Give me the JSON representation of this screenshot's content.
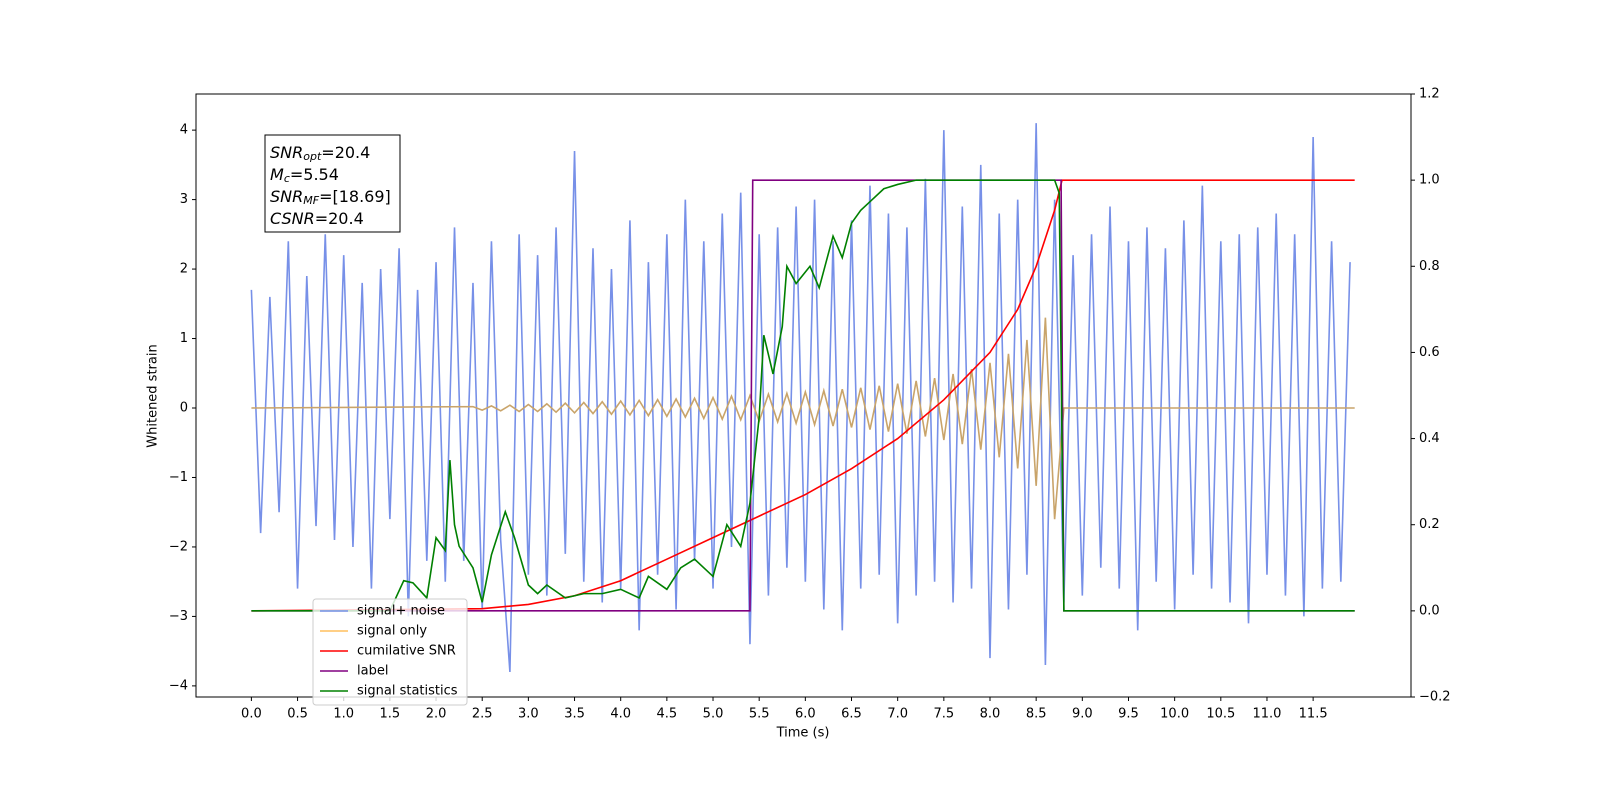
{
  "chart_data": {
    "type": "line",
    "xlabel": "Time (s)",
    "ylabel": "Whitened strain",
    "xlim": [
      -0.6,
      12.56
    ],
    "ylim": [
      -4.16,
      4.52
    ],
    "y2lim": [
      -0.2,
      1.2
    ],
    "xticks": [
      {
        "value": 0,
        "label": "0.0"
      },
      0.5,
      {
        "value": 1,
        "label": "1.0"
      },
      1.5,
      {
        "value": 2,
        "label": "2.0"
      },
      2.5,
      {
        "value": 3,
        "label": "3.0"
      },
      3.5,
      {
        "value": 4,
        "label": "4.0"
      },
      4.5,
      {
        "value": 5,
        "label": "5.0"
      },
      5.5,
      {
        "value": 6,
        "label": "6.0"
      },
      6.5,
      {
        "value": 7,
        "label": "7.0"
      },
      7.5,
      {
        "value": 8,
        "label": "8.0"
      },
      8.5,
      {
        "value": 9,
        "label": "9.0"
      },
      9.5,
      {
        "value": 10,
        "label": "10.0"
      },
      10.5,
      {
        "value": 11,
        "label": "11.0"
      },
      11.5
    ],
    "yticks": [
      {
        "value": -4,
        "label": "−4"
      },
      {
        "value": -3,
        "label": "−3"
      },
      {
        "value": -2,
        "label": "−2"
      },
      {
        "value": -1,
        "label": "−1"
      },
      0,
      1,
      2,
      3,
      4
    ],
    "y2ticks": [
      {
        "value": -0.2,
        "label": "−0.2"
      },
      {
        "value": 0,
        "label": "0.0"
      },
      0.2,
      0.4,
      0.6,
      0.8,
      {
        "value": 1,
        "label": "1.0"
      },
      1.2
    ],
    "grid": false,
    "legend": "lower left",
    "stats": [
      {
        "name": "SNR",
        "sub": "opt",
        "value": "=20.4"
      },
      {
        "name": "M",
        "sub": "c",
        "value": "=5.54"
      },
      {
        "name": "SNR",
        "sub": "MF",
        "value": "=[18.69]"
      },
      {
        "name": "CSNR",
        "value": "=20.4"
      }
    ],
    "series": [
      {
        "name": "signal+ noise",
        "color": "#7790e8",
        "x": [
          0,
          0.1,
          0.2,
          0.3,
          0.4,
          0.5,
          0.6,
          0.7,
          0.8,
          0.9,
          1,
          1.1,
          1.2,
          1.3,
          1.4,
          1.5,
          1.6,
          1.7,
          1.8,
          1.9,
          2,
          2.1,
          2.2,
          2.3,
          2.4,
          2.5,
          2.6,
          2.7,
          2.8,
          2.9,
          3,
          3.1,
          3.2,
          3.3,
          3.4,
          3.5,
          3.6,
          3.7,
          3.8,
          3.9,
          4,
          4.1,
          4.2,
          4.3,
          4.4,
          4.5,
          4.6,
          4.7,
          4.8,
          4.9,
          5,
          5.1,
          5.2,
          5.3,
          5.4,
          5.5,
          5.6,
          5.7,
          5.8,
          5.9,
          6,
          6.1,
          6.2,
          6.3,
          6.4,
          6.5,
          6.6,
          6.7,
          6.8,
          6.9,
          7,
          7.1,
          7.2,
          7.3,
          7.4,
          7.5,
          7.6,
          7.7,
          7.8,
          7.9,
          8,
          8.1,
          8.2,
          8.3,
          8.4,
          8.5,
          8.6,
          8.7,
          8.8,
          8.9,
          9,
          9.1,
          9.2,
          9.3,
          9.4,
          9.5,
          9.6,
          9.7,
          9.8,
          9.9,
          10,
          10.1,
          10.2,
          10.3,
          10.4,
          10.5,
          10.6,
          10.7,
          10.8,
          10.9,
          11,
          11.1,
          11.2,
          11.3,
          11.4,
          11.5,
          11.6,
          11.7,
          11.8,
          11.9
        ],
        "values": [
          1.7,
          -1.8,
          1.6,
          -1.5,
          2.4,
          -2.6,
          1.9,
          -1.7,
          2.5,
          -1.9,
          2.2,
          -2.0,
          1.8,
          -2.6,
          2.0,
          -1.6,
          2.3,
          -3.0,
          1.7,
          -2.2,
          2.1,
          -2.5,
          2.6,
          -2.2,
          1.8,
          -2.9,
          2.4,
          -1.9,
          -3.8,
          2.5,
          -2.4,
          2.2,
          -2.7,
          2.6,
          -2.1,
          3.7,
          -2.5,
          2.3,
          -2.8,
          2.0,
          -2.6,
          2.7,
          -3.2,
          2.1,
          -2.4,
          2.5,
          -2.9,
          3.0,
          -2.2,
          2.4,
          -2.6,
          2.8,
          -2.0,
          3.1,
          -3.4,
          2.5,
          -2.7,
          2.6,
          -2.3,
          2.9,
          -2.5,
          3.0,
          -2.9,
          2.4,
          -3.2,
          2.7,
          -2.6,
          3.2,
          -2.4,
          2.8,
          -3.1,
          2.6,
          -2.7,
          3.3,
          -2.5,
          4.0,
          -2.8,
          2.9,
          -2.6,
          3.5,
          -3.6,
          2.8,
          -2.9,
          3.0,
          -2.4,
          4.1,
          -3.7,
          3.0,
          -2.8,
          2.2,
          -2.7,
          2.5,
          -2.3,
          2.9,
          -2.6,
          2.4,
          -3.2,
          2.6,
          -2.5,
          2.3,
          -2.9,
          2.7,
          -2.4,
          3.2,
          -2.6,
          2.4,
          -2.8,
          2.5,
          -3.1,
          2.6,
          -2.4,
          2.8,
          -2.7,
          2.5,
          -3.0,
          3.9,
          -2.6,
          2.4,
          -2.5,
          2.1
        ]
      },
      {
        "name": "signal only",
        "color": "#ffbf5f",
        "x": [
          0,
          2.4,
          2.5,
          2.6,
          2.7,
          2.8,
          2.9,
          3,
          3.1,
          3.2,
          3.3,
          3.4,
          3.5,
          3.6,
          3.7,
          3.8,
          3.9,
          4,
          4.1,
          4.2,
          4.3,
          4.4,
          4.5,
          4.6,
          4.7,
          4.8,
          4.9,
          5,
          5.1,
          5.2,
          5.3,
          5.4,
          5.5,
          5.6,
          5.7,
          5.8,
          5.9,
          6,
          6.1,
          6.2,
          6.3,
          6.4,
          6.5,
          6.6,
          6.7,
          6.8,
          6.9,
          7,
          7.1,
          7.2,
          7.3,
          7.4,
          7.5,
          7.6,
          7.7,
          7.8,
          7.9,
          8,
          8.1,
          8.2,
          8.3,
          8.4,
          8.5,
          8.6,
          8.7,
          8.8,
          11.95
        ],
        "values": [
          0,
          0.02,
          -0.03,
          0.03,
          -0.04,
          0.04,
          -0.05,
          0.05,
          -0.05,
          0.06,
          -0.06,
          0.07,
          -0.07,
          0.08,
          -0.08,
          0.09,
          -0.09,
          0.1,
          -0.1,
          0.11,
          -0.11,
          0.12,
          -0.12,
          0.13,
          -0.13,
          0.14,
          -0.15,
          0.15,
          -0.16,
          0.17,
          -0.17,
          0.18,
          -0.19,
          0.2,
          -0.2,
          0.21,
          -0.22,
          0.23,
          -0.24,
          0.25,
          -0.26,
          0.27,
          -0.28,
          0.29,
          -0.31,
          0.32,
          -0.34,
          0.35,
          -0.37,
          0.39,
          -0.41,
          0.43,
          -0.46,
          0.49,
          -0.52,
          0.56,
          -0.6,
          0.65,
          -0.71,
          0.78,
          -0.87,
          0.98,
          -1.12,
          1.3,
          -1.6,
          0,
          0
        ]
      },
      {
        "name": "cumilative SNR",
        "color": "#ff0000",
        "axis": "y2",
        "x": [
          0,
          2.5,
          3,
          3.5,
          4,
          4.5,
          5,
          5.5,
          6,
          6.5,
          7,
          7.5,
          8,
          8.3,
          8.5,
          8.7,
          8.78,
          11.95
        ],
        "values": [
          0,
          0.005,
          0.015,
          0.035,
          0.07,
          0.12,
          0.17,
          0.22,
          0.27,
          0.33,
          0.4,
          0.49,
          0.6,
          0.7,
          0.8,
          0.93,
          1.0,
          1.0
        ]
      },
      {
        "name": "label",
        "color": "#800080",
        "axis": "y2",
        "x": [
          0,
          5.4,
          5.43,
          8.77,
          8.8,
          11.95
        ],
        "values": [
          0,
          0,
          1,
          1,
          0,
          0
        ]
      },
      {
        "name": "signal statistics",
        "color": "#008000",
        "axis": "y2",
        "x": [
          0,
          1.5,
          1.65,
          1.75,
          1.9,
          2,
          2.1,
          2.15,
          2.2,
          2.25,
          2.4,
          2.5,
          2.6,
          2.75,
          2.85,
          3,
          3.1,
          3.2,
          3.4,
          3.6,
          3.8,
          4,
          4.2,
          4.3,
          4.5,
          4.65,
          4.8,
          5,
          5.15,
          5.3,
          5.4,
          5.5,
          5.55,
          5.65,
          5.75,
          5.8,
          5.9,
          6.05,
          6.15,
          6.3,
          6.4,
          6.5,
          6.6,
          6.7,
          6.85,
          7,
          7.2,
          8.7,
          8.75,
          8.8,
          11.95
        ],
        "values": [
          0,
          0,
          0.07,
          0.065,
          0.03,
          0.17,
          0.14,
          0.35,
          0.2,
          0.15,
          0.1,
          0.02,
          0.13,
          0.23,
          0.17,
          0.06,
          0.04,
          0.06,
          0.03,
          0.04,
          0.04,
          0.05,
          0.03,
          0.08,
          0.05,
          0.1,
          0.12,
          0.08,
          0.2,
          0.15,
          0.25,
          0.45,
          0.64,
          0.55,
          0.66,
          0.8,
          0.76,
          0.8,
          0.75,
          0.87,
          0.82,
          0.9,
          0.93,
          0.95,
          0.98,
          0.99,
          1.0,
          1.0,
          0.97,
          0,
          0
        ]
      }
    ]
  }
}
